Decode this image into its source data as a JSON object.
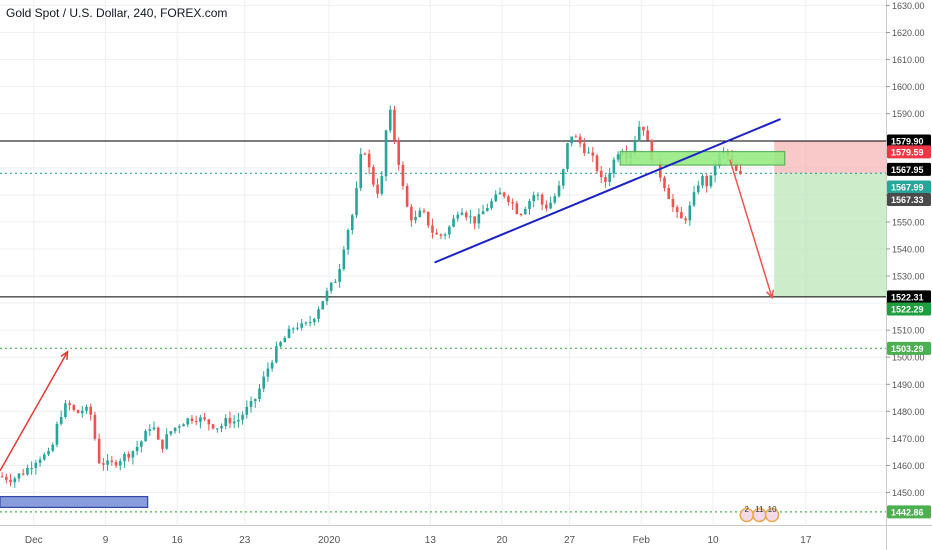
{
  "chart_data": {
    "type": "candlestick",
    "title": "Gold Spot / U.S. Dollar, 240, FOREX.com",
    "y_axis": {
      "range": [
        1438,
        1632
      ],
      "ticks": [
        1450,
        1460,
        1470,
        1480,
        1490,
        1500,
        1510,
        1520,
        1530,
        1540,
        1550,
        1560,
        1570,
        1580,
        1590,
        1600,
        1610,
        1620,
        1630
      ],
      "tick_labels": [
        "1450.00",
        "1460.00",
        "1470.00",
        "1480.00",
        "1490.00",
        "1500.00",
        "1510.00",
        "1520.00",
        "1530.00",
        "1540.00",
        "1550.00",
        "1560.00",
        "1570.00",
        "1580.00",
        "1590.00",
        "1600.00",
        "1610.00",
        "1620.00",
        "1630.00"
      ]
    },
    "x_axis": {
      "range": [
        0,
        210
      ],
      "ticks": [
        {
          "x": 8,
          "label": "Dec"
        },
        {
          "x": 25,
          "label": "9"
        },
        {
          "x": 42,
          "label": "16"
        },
        {
          "x": 58,
          "label": "23"
        },
        {
          "x": 78,
          "label": "2020"
        },
        {
          "x": 102,
          "label": "13"
        },
        {
          "x": 119,
          "label": "20"
        },
        {
          "x": 135,
          "label": "27"
        },
        {
          "x": 152,
          "label": "Feb"
        },
        {
          "x": 169,
          "label": "10"
        },
        {
          "x": 191,
          "label": "17"
        }
      ]
    },
    "grid": true,
    "price_anchors": [
      [
        0,
        1456
      ],
      [
        3,
        1455
      ],
      [
        6,
        1458
      ],
      [
        9,
        1463
      ],
      [
        12,
        1464
      ],
      [
        14,
        1478
      ],
      [
        16,
        1483
      ],
      [
        18,
        1479
      ],
      [
        20,
        1481
      ],
      [
        22,
        1478
      ],
      [
        23,
        1462
      ],
      [
        26,
        1460
      ],
      [
        29,
        1463
      ],
      [
        32,
        1466
      ],
      [
        34,
        1470
      ],
      [
        36,
        1476
      ],
      [
        38,
        1466
      ],
      [
        40,
        1472
      ],
      [
        43,
        1476
      ],
      [
        46,
        1478
      ],
      [
        49,
        1476
      ],
      [
        52,
        1474
      ],
      [
        54,
        1477
      ],
      [
        56,
        1476
      ],
      [
        58,
        1480
      ],
      [
        60,
        1483
      ],
      [
        62,
        1490
      ],
      [
        64,
        1498
      ],
      [
        66,
        1504
      ],
      [
        68,
        1508
      ],
      [
        70,
        1512
      ],
      [
        72,
        1511
      ],
      [
        74,
        1514
      ],
      [
        76,
        1520
      ],
      [
        78,
        1525
      ],
      [
        80,
        1530
      ],
      [
        82,
        1545
      ],
      [
        84,
        1555
      ],
      [
        86,
        1580
      ],
      [
        88,
        1566
      ],
      [
        90,
        1560
      ],
      [
        91,
        1572
      ],
      [
        92,
        1595
      ],
      [
        93,
        1585
      ],
      [
        95,
        1568
      ],
      [
        96,
        1557
      ],
      [
        98,
        1550
      ],
      [
        100,
        1554
      ],
      [
        103,
        1545
      ],
      [
        105,
        1545
      ],
      [
        107,
        1549
      ],
      [
        109,
        1556
      ],
      [
        111,
        1552
      ],
      [
        113,
        1550
      ],
      [
        115,
        1555
      ],
      [
        117,
        1558
      ],
      [
        119,
        1561
      ],
      [
        121,
        1558
      ],
      [
        123,
        1553
      ],
      [
        125,
        1557
      ],
      [
        127,
        1561
      ],
      [
        129,
        1555
      ],
      [
        131,
        1558
      ],
      [
        133,
        1564
      ],
      [
        135,
        1583
      ],
      [
        137,
        1580
      ],
      [
        139,
        1576
      ],
      [
        141,
        1572
      ],
      [
        143,
        1563
      ],
      [
        145,
        1571
      ],
      [
        147,
        1578
      ],
      [
        149,
        1574
      ],
      [
        151,
        1583
      ],
      [
        152,
        1588
      ],
      [
        154,
        1576
      ],
      [
        156,
        1569
      ],
      [
        158,
        1562
      ],
      [
        160,
        1553
      ],
      [
        162,
        1550
      ],
      [
        164,
        1557
      ],
      [
        166,
        1567
      ],
      [
        168,
        1563
      ],
      [
        170,
        1574
      ],
      [
        172,
        1576
      ],
      [
        174,
        1569
      ],
      [
        176,
        1566
      ]
    ],
    "horizontal_lines": [
      {
        "name": "resistance-line",
        "price": 1579.9,
        "color": "#000000",
        "style": "solid"
      },
      {
        "name": "support-line",
        "price": 1522.31,
        "color": "#000000",
        "style": "solid"
      },
      {
        "name": "mid-dotted-line",
        "price": 1503.29,
        "color": "#4caf50",
        "style": "dotted"
      },
      {
        "name": "low-dotted-line",
        "price": 1442.86,
        "color": "#4caf50",
        "style": "dotted"
      },
      {
        "name": "current-price-line",
        "price": 1567.95,
        "color": "#26a69a",
        "style": "dotted"
      }
    ],
    "trendline": {
      "from": [
        103,
        1535
      ],
      "to": [
        185,
        1588
      ],
      "color": "#1c22c5"
    },
    "arrows": [
      {
        "name": "up-arrow",
        "from": [
          0,
          1458
        ],
        "to": [
          16,
          1502
        ],
        "color": "#e53935"
      },
      {
        "name": "down-arrow",
        "from": [
          173,
          1573
        ],
        "to": [
          183,
          1522
        ],
        "color": "#ef5350"
      }
    ],
    "zones": [
      {
        "name": "green-zone-box",
        "x1": 147,
        "x2": 186,
        "p1": 1571,
        "p2": 1576,
        "fill": "#96ea83",
        "stroke": "#4caf50"
      },
      {
        "name": "blue-zone-box",
        "x1": 0,
        "x2": 35,
        "p1": 1444.5,
        "p2": 1448.5,
        "fill": "#7d93d6",
        "stroke": "#1c33a0"
      }
    ],
    "position": {
      "x1": 183.5,
      "x2": 210,
      "stop": 1579.9,
      "entry": 1567.95,
      "target": 1522.31
    },
    "axis_labels": [
      {
        "text": "1579.90",
        "price": 1579.9,
        "bg": "#000000",
        "fg": "#ffffff"
      },
      {
        "text": "1579.59",
        "price": 1575.9,
        "bg": "#f23645",
        "fg": "#ffffff"
      },
      {
        "text": "1567.95",
        "price": 1569.4,
        "bg": "#000000",
        "fg": "#ffffff"
      },
      {
        "text": "1567.99",
        "price": 1562.9,
        "bg": "#26a69a",
        "fg": "#ffffff"
      },
      {
        "text": "1567.33",
        "price": 1558.3,
        "bg": "#4a4a4a",
        "fg": "#ffffff"
      },
      {
        "text": "1522.31",
        "price": 1522.31,
        "bg": "#000000",
        "fg": "#ffffff"
      },
      {
        "text": "1522.29",
        "price": 1517.8,
        "bg": "#1e9e3e",
        "fg": "#ffffff"
      },
      {
        "text": "1503.29",
        "price": 1503.29,
        "bg": "#4caf50",
        "fg": "#ffffff"
      },
      {
        "text": "1442.86",
        "price": 1442.86,
        "bg": "#4caf50",
        "fg": "#ffffff"
      }
    ],
    "event_markers": [
      {
        "x": 177,
        "text": "2"
      },
      {
        "x": 180,
        "text": "11"
      },
      {
        "x": 183,
        "text": "10"
      }
    ]
  }
}
